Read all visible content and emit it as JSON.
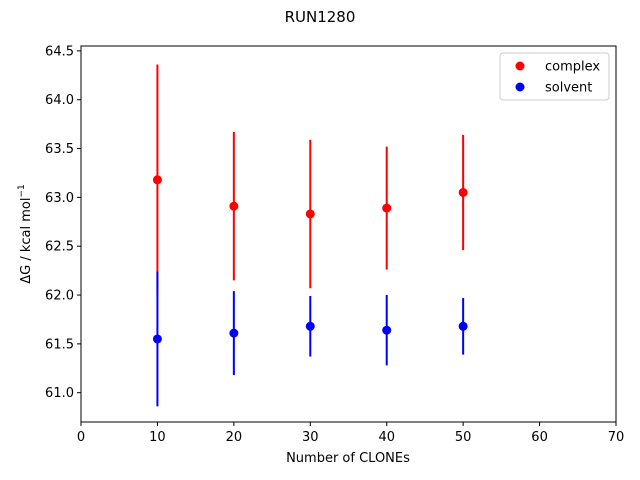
{
  "chart_data": {
    "type": "scatter",
    "title": "RUN1280",
    "xlabel": "Number of CLONEs",
    "ylabel": "ΔG / kcal mol",
    "ylabel_superscript": "−1",
    "xlim": [
      0,
      70
    ],
    "ylim": [
      60.7,
      64.55
    ],
    "xticks": [
      0,
      10,
      20,
      30,
      40,
      50,
      60,
      70
    ],
    "yticks": [
      61.0,
      61.5,
      62.0,
      62.5,
      63.0,
      63.5,
      64.0,
      64.5
    ],
    "grid": false,
    "legend_position": "top-right",
    "series": [
      {
        "name": "complex",
        "color": "#ff0000",
        "x": [
          10,
          20,
          30,
          40,
          50
        ],
        "y": [
          63.18,
          62.91,
          62.83,
          62.89,
          63.05
        ],
        "yerr": [
          1.18,
          0.76,
          0.76,
          0.63,
          0.59
        ]
      },
      {
        "name": "solvent",
        "color": "#0000ff",
        "x": [
          10,
          20,
          30,
          40,
          50
        ],
        "y": [
          61.55,
          61.61,
          61.68,
          61.64,
          61.68
        ],
        "yerr": [
          0.69,
          0.43,
          0.31,
          0.36,
          0.29
        ]
      }
    ]
  }
}
